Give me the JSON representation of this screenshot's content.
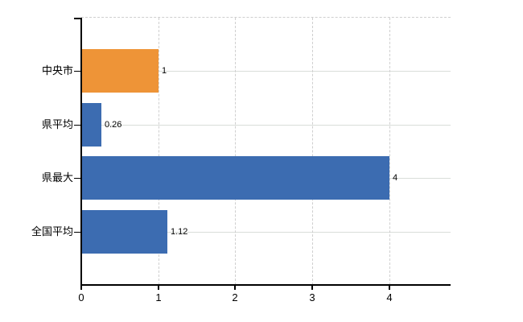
{
  "chart_data": {
    "type": "bar",
    "orientation": "horizontal",
    "title": "",
    "xlabel": "",
    "ylabel": "",
    "categories": [
      "中央市",
      "県平均",
      "県最大",
      "全国平均"
    ],
    "values": [
      1,
      0.26,
      4,
      1.12
    ],
    "value_labels": [
      "1",
      "0.26",
      "4",
      "1.12"
    ],
    "bar_colors": [
      "#EE9437",
      "#3C6CB1",
      "#3C6CB1",
      "#3C6CB1"
    ],
    "x_ticks": [
      0,
      1,
      2,
      3,
      4
    ],
    "x_tick_labels": [
      "0",
      "1",
      "2",
      "3",
      "4"
    ],
    "xlim": [
      0,
      4.8
    ],
    "legend": "none",
    "grid": {
      "vertical_gridlines": "dashed, at integer ticks 1-4",
      "horizontal_gridlines": "solid, at category centers",
      "top_border": "dashed"
    },
    "colors": {
      "highlight_bar": "#EE9437",
      "default_bar": "#3C6CB1",
      "horizontal_gridline": "#D9DDD9",
      "vertical_gridline": "#CFCFCF",
      "top_border": "#CFCFCF",
      "axis": "#000000",
      "text": "#000000",
      "background": "#FFFFFF"
    }
  }
}
